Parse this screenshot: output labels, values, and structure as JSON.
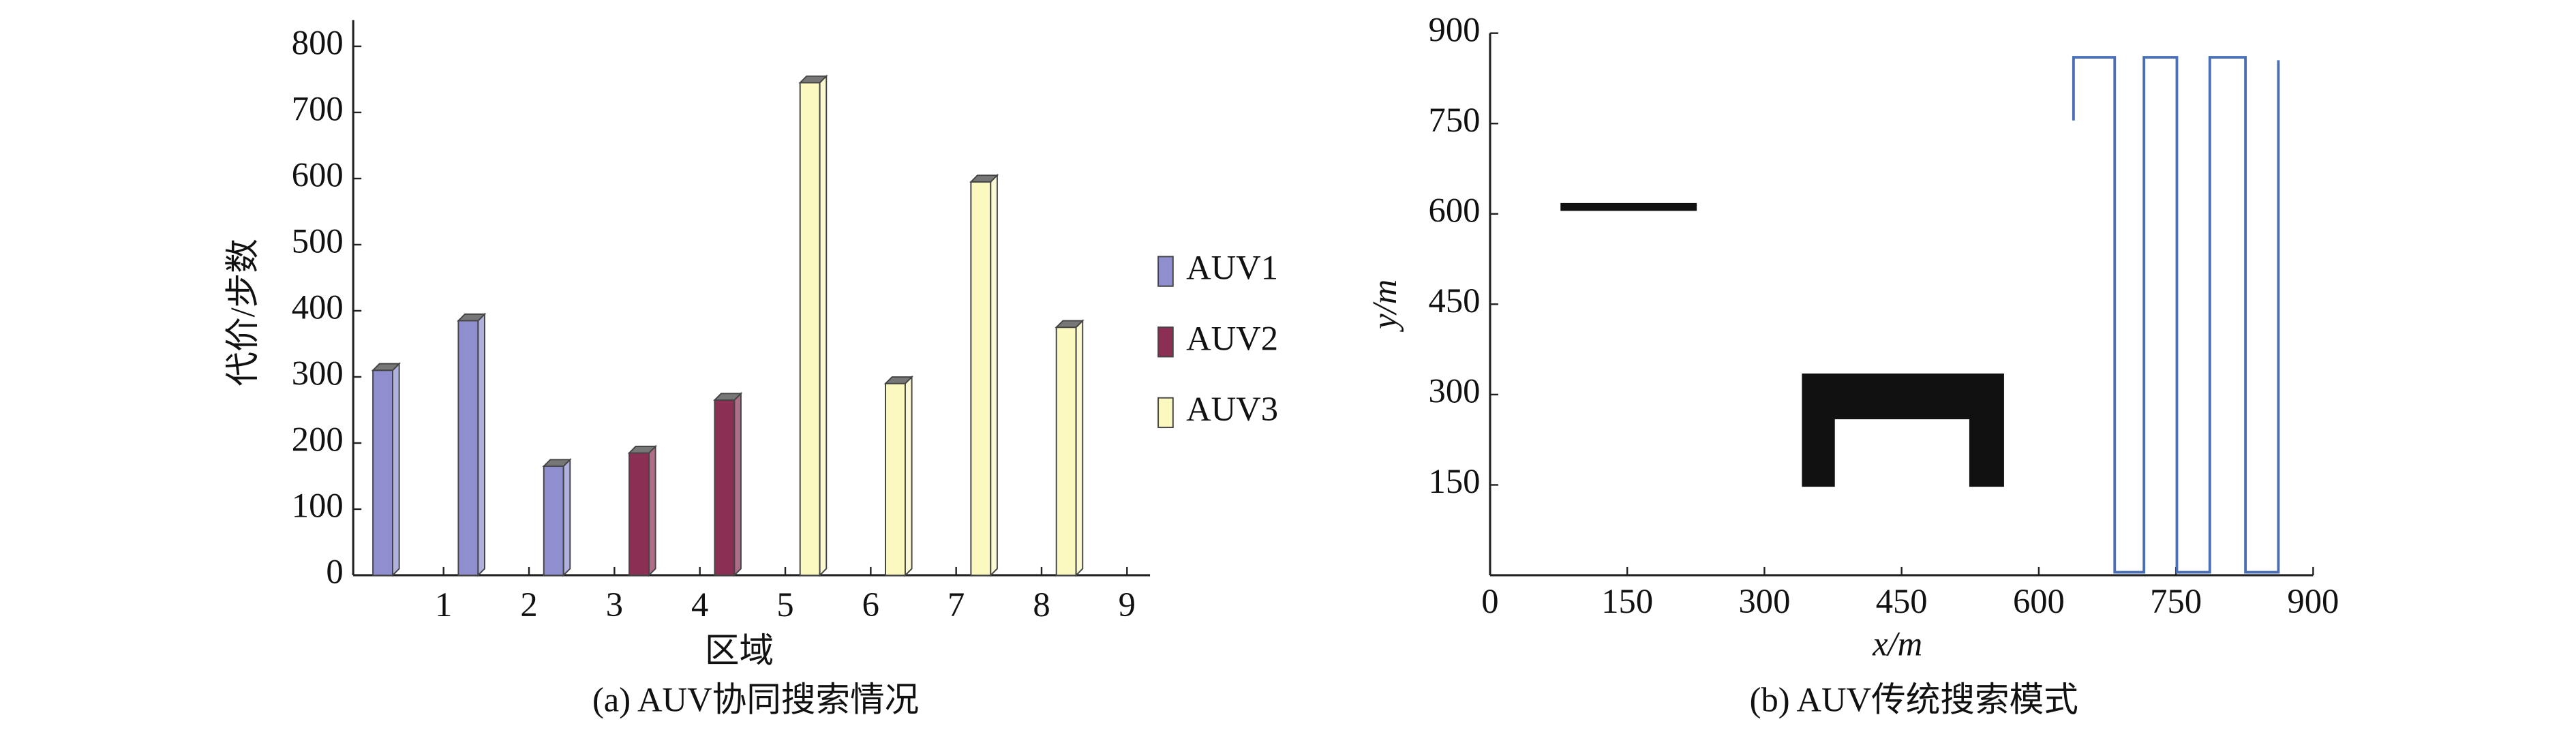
{
  "chart_data": [
    {
      "type": "bar3d",
      "caption": "(a)  AUV协同搜索情况",
      "x_label": "区域",
      "y_label": "代价/步数",
      "categories": [
        "1",
        "2",
        "3",
        "4",
        "5",
        "6",
        "7",
        "8",
        "9"
      ],
      "series": [
        {
          "name": "AUV1",
          "color": "#8f8fd0",
          "values": [
            310,
            385,
            165,
            null,
            null,
            null,
            null,
            null,
            null
          ]
        },
        {
          "name": "AUV2",
          "color": "#8b2f55",
          "values": [
            null,
            null,
            null,
            185,
            265,
            null,
            null,
            null,
            null
          ]
        },
        {
          "name": "AUV3",
          "color": "#fbf8c0",
          "values": [
            null,
            null,
            null,
            null,
            null,
            745,
            290,
            595,
            375
          ]
        }
      ],
      "ylim": [
        0,
        800
      ],
      "yticks": [
        0,
        100,
        200,
        300,
        400,
        500,
        600,
        700,
        800
      ]
    },
    {
      "type": "path",
      "caption": "(b)  AUV传统搜索模式",
      "x_label": "x/m",
      "y_label": "y/m",
      "color": "#4a6fb5",
      "x": [
        638,
        638,
        683,
        683,
        715,
        715,
        751,
        751,
        787,
        787,
        826,
        826,
        862,
        862
      ],
      "y": [
        755,
        860,
        860,
        5,
        5,
        860,
        860,
        5,
        5,
        860,
        860,
        5,
        5,
        855
      ],
      "obstacles": [
        {
          "x": [
            77,
            226,
            226,
            77
          ],
          "y": [
            618,
            618,
            605,
            605
          ]
        },
        {
          "x": [
            341,
            562,
            562,
            524,
            524,
            377,
            377,
            341
          ],
          "y": [
            335,
            335,
            147,
            147,
            259,
            259,
            147,
            147
          ]
        }
      ],
      "obstacle_color": "#111111",
      "xlim": [
        0,
        900
      ],
      "xticks": [
        0,
        150,
        300,
        450,
        600,
        750,
        900
      ],
      "ylim": [
        0,
        900
      ],
      "yticks": [
        150,
        300,
        450,
        600,
        750,
        900
      ]
    }
  ]
}
